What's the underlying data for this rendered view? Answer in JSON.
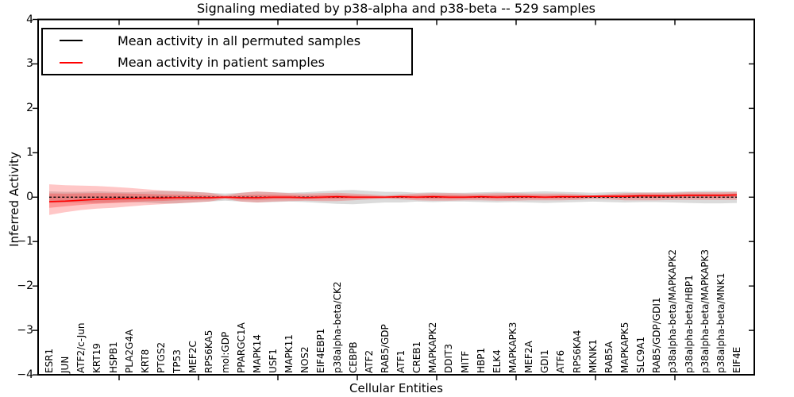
{
  "title": "Signaling mediated by p38-alpha and p38-beta -- 529 samples",
  "axes": {
    "ylabel": "Inferred Activity",
    "xlabel": "Cellular Entities",
    "yticks": [
      "4",
      "3",
      "2",
      "1",
      "0",
      "−1",
      "−2",
      "−3",
      "−4"
    ]
  },
  "legend": {
    "items": [
      {
        "label": "Mean activity in all permuted samples",
        "color": "#000000"
      },
      {
        "label": "Mean activity in patient samples",
        "color": "#ff0000"
      }
    ]
  },
  "colors": {
    "permuted_line": "#000000",
    "patient_line": "#ff0000",
    "patient_band": "rgba(255,0,0,0.22)",
    "patient_band_inner": "rgba(255,0,0,0.25)",
    "permuted_band": "rgba(125,125,125,0.28)",
    "axis": "#000000",
    "background": "#ffffff"
  },
  "chart_data": {
    "type": "line",
    "title": "Signaling mediated by p38-alpha and p38-beta -- 529 samples",
    "xlabel": "Cellular Entities",
    "ylabel": "Inferred Activity",
    "ylim": [
      -4,
      4
    ],
    "grid": false,
    "legend_position": "upper left",
    "xticklabel_rotation": 90,
    "categories": [
      "ESR1",
      "JUN",
      "ATF2/c-Jun",
      "KRT19",
      "HSPB1",
      "PLA2G4A",
      "KRT8",
      "PTGS2",
      "TP53",
      "MEF2C",
      "RPS6KA5",
      "mol:GDP",
      "PPARGC1A",
      "MAPK14",
      "USF1",
      "MAPK11",
      "NOS2",
      "EIF4EBP1",
      "p38alpha-beta/CK2",
      "CEBPB",
      "ATF2",
      "RAB5/GDP",
      "ATF1",
      "CREB1",
      "MAPKAPK2",
      "DDIT3",
      "MITF",
      "HBP1",
      "ELK4",
      "MAPKAPK3",
      "MEF2A",
      "GDI1",
      "ATF6",
      "RPS6KA4",
      "MKNK1",
      "RAB5A",
      "MAPKAPK5",
      "SLC9A1",
      "RAB5/GDP/GDI1",
      "p38alpha-beta/MAPKAPK2",
      "p38alpha-beta/HBP1",
      "p38alpha-beta/MAPKAPK3",
      "p38alpha-beta/MNK1",
      "EIF4E"
    ],
    "series": [
      {
        "name": "Mean activity in all permuted samples",
        "values": [
          0,
          0,
          0,
          0,
          0,
          0,
          0,
          0,
          0,
          0,
          0,
          0,
          0,
          0,
          0,
          0,
          0,
          0,
          0,
          0,
          0,
          0,
          0,
          0,
          0,
          0,
          0,
          0,
          0,
          0,
          0,
          0,
          0,
          0,
          0,
          0,
          0,
          0,
          0,
          0,
          0,
          0,
          0,
          0
        ]
      },
      {
        "name": "Mean activity in patient samples",
        "values": [
          -0.1,
          -0.09,
          -0.07,
          -0.05,
          -0.04,
          -0.03,
          -0.02,
          -0.02,
          -0.01,
          -0.01,
          -0.01,
          0.0,
          -0.01,
          -0.01,
          0.0,
          0.0,
          -0.01,
          0.0,
          0.01,
          0.0,
          0.0,
          0.0,
          0.01,
          0.0,
          0.01,
          0.0,
          0.0,
          0.01,
          0.0,
          0.01,
          0.01,
          0.0,
          0.01,
          0.01,
          0.02,
          0.02,
          0.02,
          0.03,
          0.03,
          0.03,
          0.04,
          0.04,
          0.04,
          0.05
        ]
      },
      {
        "name": "patient band upper",
        "values": [
          0.29,
          0.27,
          0.26,
          0.25,
          0.23,
          0.21,
          0.18,
          0.15,
          0.13,
          0.12,
          0.1,
          0.04,
          0.1,
          0.13,
          0.11,
          0.09,
          0.08,
          0.09,
          0.1,
          0.08,
          0.06,
          0.035,
          0.06,
          0.08,
          0.09,
          0.09,
          0.08,
          0.08,
          0.09,
          0.09,
          0.08,
          0.08,
          0.08,
          0.07,
          0.04,
          0.07,
          0.09,
          0.1,
          0.1,
          0.1,
          0.11,
          0.11,
          0.11,
          0.12
        ]
      },
      {
        "name": "patient band lower",
        "values": [
          -0.4,
          -0.34,
          -0.29,
          -0.26,
          -0.24,
          -0.21,
          -0.18,
          -0.16,
          -0.14,
          -0.12,
          -0.1,
          -0.04,
          -0.1,
          -0.12,
          -0.1,
          -0.09,
          -0.08,
          -0.09,
          -0.09,
          -0.07,
          -0.05,
          -0.035,
          -0.05,
          -0.07,
          -0.08,
          -0.08,
          -0.07,
          -0.07,
          -0.08,
          -0.08,
          -0.07,
          -0.07,
          -0.07,
          -0.06,
          -0.04,
          -0.05,
          -0.07,
          -0.07,
          -0.07,
          -0.06,
          -0.06,
          -0.06,
          -0.06,
          -0.06
        ]
      },
      {
        "name": "permuted band halfwidth",
        "values": [
          0.13,
          0.12,
          0.12,
          0.13,
          0.12,
          0.11,
          0.12,
          0.14,
          0.14,
          0.12,
          0.1,
          0.08,
          0.1,
          0.12,
          0.11,
          0.1,
          0.11,
          0.13,
          0.15,
          0.16,
          0.14,
          0.12,
          0.12,
          0.1,
          0.11,
          0.1,
          0.1,
          0.11,
          0.12,
          0.11,
          0.12,
          0.13,
          0.12,
          0.11,
          0.1,
          0.11,
          0.12,
          0.11,
          0.11,
          0.12,
          0.13,
          0.14,
          0.14,
          0.13
        ]
      }
    ]
  }
}
